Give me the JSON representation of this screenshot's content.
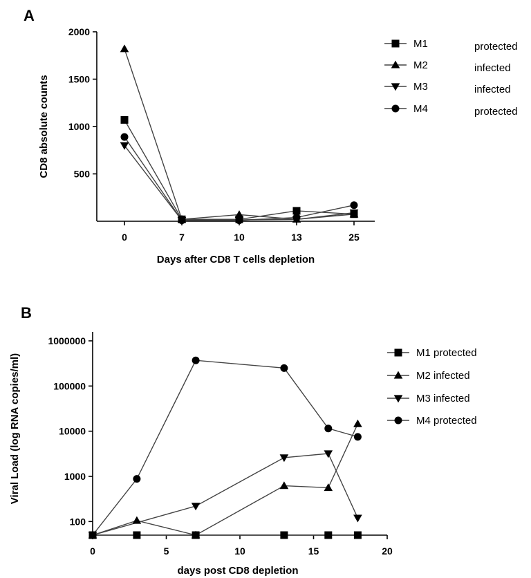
{
  "chart_data": [
    {
      "panel": "A",
      "type": "line",
      "xlabel": "Days after CD8 T cells depletion",
      "ylabel": "CD8 absolute counts",
      "scale": "linear",
      "categories": [
        "0",
        "7",
        "10",
        "13",
        "25"
      ],
      "ylim": [
        0,
        2000
      ],
      "yticks": [
        500,
        1000,
        1500,
        2000
      ],
      "legend": "right",
      "grid": false,
      "series": [
        {
          "name": "M1",
          "status": "protected",
          "marker": "square",
          "values": [
            1070,
            20,
            20,
            110,
            75
          ]
        },
        {
          "name": "M2",
          "status": "infected",
          "marker": "triangle-up",
          "values": [
            1820,
            20,
            70,
            20,
            75
          ]
        },
        {
          "name": "M3",
          "status": "infected",
          "marker": "triangle-down",
          "values": [
            800,
            10,
            15,
            20,
            90
          ]
        },
        {
          "name": "M4",
          "status": "protected",
          "marker": "circle",
          "values": [
            890,
            10,
            10,
            40,
            170
          ]
        }
      ]
    },
    {
      "panel": "B",
      "type": "line",
      "xlabel": "days post CD8 depletion",
      "ylabel": "Viral Load (log RNA copies/ml)",
      "scale": "log",
      "xlim": [
        0,
        20
      ],
      "xticks": [
        0,
        5,
        10,
        15,
        20
      ],
      "ylim": [
        50,
        1000000
      ],
      "yticks": [
        100,
        1000,
        10000,
        100000,
        1000000
      ],
      "ytick_labels": [
        "100",
        "1000",
        "10000",
        "100000",
        "1000000"
      ],
      "legend": "right",
      "grid": false,
      "series": [
        {
          "name": "M1 protected",
          "marker": "square",
          "x": [
            0,
            3,
            7,
            13,
            16,
            18
          ],
          "values": [
            50,
            50,
            50,
            50,
            50,
            50
          ]
        },
        {
          "name": "M2 infected",
          "marker": "triangle-up",
          "x": [
            0,
            3,
            7,
            13,
            16,
            18
          ],
          "values": [
            50,
            105,
            50,
            620,
            560,
            14500
          ]
        },
        {
          "name": "M3 infected",
          "marker": "triangle-down",
          "x": [
            0,
            7,
            13,
            16,
            18
          ],
          "values": [
            50,
            220,
            2600,
            3200,
            120
          ]
        },
        {
          "name": "M4 protected",
          "marker": "circle",
          "x": [
            0,
            3,
            7,
            13,
            16,
            18
          ],
          "values": [
            50,
            880,
            370000,
            250000,
            11500,
            7500
          ]
        }
      ]
    }
  ]
}
